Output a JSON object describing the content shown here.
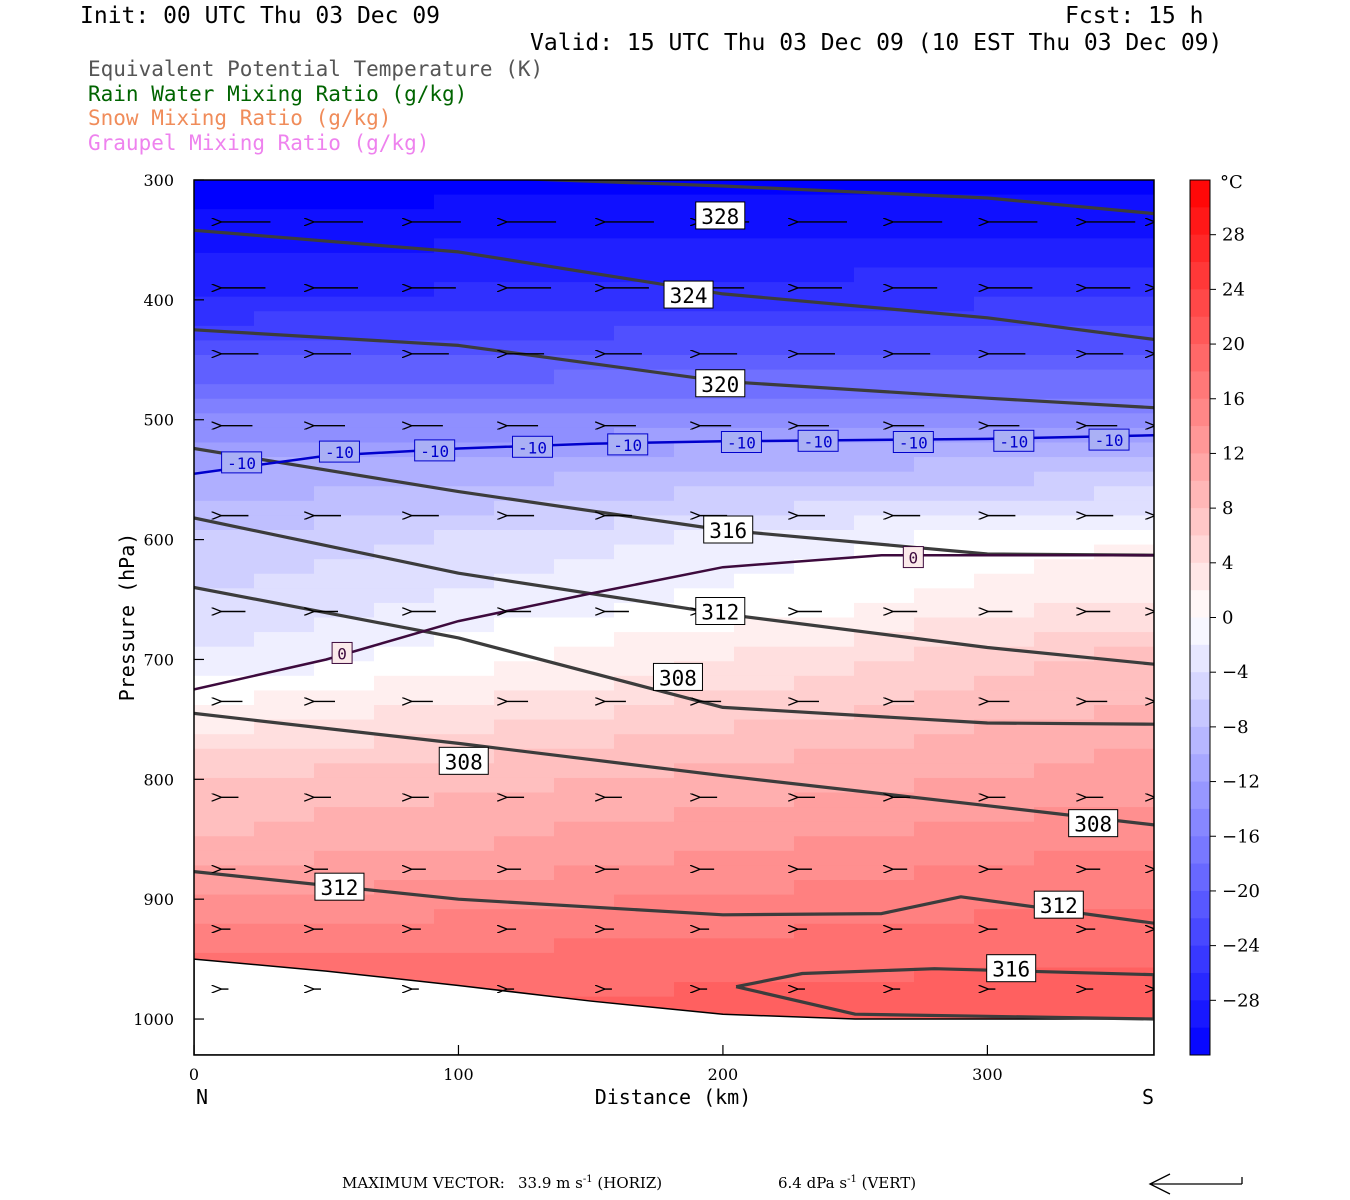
{
  "header": {
    "init": "Init: 00 UTC Thu 03 Dec 09",
    "fcst": "Fcst:   15 h",
    "valid": "Valid: 15 UTC Thu 03 Dec 09 (10 EST Thu 03 Dec 09)"
  },
  "legend": [
    {
      "label": "Equivalent Potential Temperature (K)",
      "color": "#555555"
    },
    {
      "label": "Rain Water Mixing Ratio (g/kg)",
      "color": "#006400"
    },
    {
      "label": "Snow Mixing Ratio (g/kg)",
      "color": "#f08c5a"
    },
    {
      "label": "Graupel Mixing Ratio (g/kg)",
      "color": "#ee82ee"
    }
  ],
  "footer": {
    "max_vector_label": "MAXIMUM VECTOR:",
    "horiz": "33.9 m s",
    "horiz_exp": "-1",
    "horiz_tag": "(HORIZ)",
    "vert": "6.4 dPa s",
    "vert_exp": "-1",
    "vert_tag": "(VERT)"
  },
  "chart_data": {
    "type": "cross-section",
    "xlabel": "Distance (km)",
    "ylabel": "Pressure (hPa)",
    "xlim": [
      0,
      363
    ],
    "ylim": [
      1030,
      300
    ],
    "x_ticks": [
      0,
      100,
      200,
      300
    ],
    "y_ticks": [
      300,
      400,
      500,
      600,
      700,
      800,
      900,
      1000
    ],
    "x_end_labels": {
      "left": "N",
      "right": "S"
    },
    "colorbar": {
      "unit": "°C",
      "min": -32,
      "max": 32,
      "step": 2,
      "tick_labels": [
        28,
        24,
        20,
        16,
        12,
        8,
        4,
        0,
        -4,
        -8,
        -12,
        -16,
        -20,
        -24,
        -28
      ],
      "cold_color": "#0000ff",
      "warm_color": "#ff0000"
    },
    "temperature_field": {
      "profile_pressure": [
        300,
        400,
        500,
        525,
        600,
        650,
        700,
        750,
        800,
        850,
        900,
        950,
        1000
      ],
      "profile_temp_north": [
        -32,
        -27,
        -15,
        -12,
        -7,
        -5,
        -3,
        2,
        7,
        9,
        13,
        17,
        19
      ],
      "profile_temp_south": [
        -32,
        -25,
        -15,
        -10,
        1,
        3,
        8,
        10,
        12,
        15,
        17,
        19,
        21
      ]
    },
    "surface": [
      [
        0,
        950
      ],
      [
        50,
        960
      ],
      [
        100,
        972
      ],
      [
        150,
        985
      ],
      [
        200,
        996
      ],
      [
        250,
        1000
      ],
      [
        300,
        1000
      ],
      [
        363,
        1000
      ]
    ],
    "theta_e_contours": [
      {
        "label": "328",
        "points": [
          [
            0,
            298
          ],
          [
            100,
            297
          ],
          [
            200,
            305
          ],
          [
            300,
            315
          ],
          [
            363,
            328
          ]
        ],
        "label_at": [
          199,
          330
        ]
      },
      {
        "label": "324",
        "points": [
          [
            0,
            342
          ],
          [
            100,
            360
          ],
          [
            200,
            395
          ],
          [
            300,
            415
          ],
          [
            363,
            433
          ]
        ],
        "label_at": [
          187,
          396
        ]
      },
      {
        "label": "320",
        "points": [
          [
            0,
            425
          ],
          [
            100,
            438
          ],
          [
            200,
            468
          ],
          [
            300,
            482
          ],
          [
            363,
            490
          ]
        ],
        "label_at": [
          199,
          470
        ]
      },
      {
        "label": "316",
        "points": [
          [
            0,
            524
          ],
          [
            100,
            560
          ],
          [
            200,
            592
          ],
          [
            300,
            612
          ],
          [
            363,
            613
          ]
        ],
        "label_at": [
          202,
          592
        ]
      },
      {
        "label": "312",
        "points": [
          [
            0,
            582
          ],
          [
            100,
            628
          ],
          [
            200,
            662
          ],
          [
            300,
            690
          ],
          [
            363,
            704
          ]
        ],
        "label_at": [
          199,
          660
        ]
      },
      {
        "label": "308",
        "points": [
          [
            0,
            640
          ],
          [
            100,
            682
          ],
          [
            200,
            740
          ],
          [
            300,
            753
          ],
          [
            363,
            754
          ]
        ],
        "label_at": [
          183,
          715
        ]
      },
      {
        "label": "308",
        "points": [
          [
            0,
            745
          ],
          [
            100,
            770
          ],
          [
            200,
            797
          ],
          [
            300,
            822
          ],
          [
            363,
            838
          ]
        ],
        "label_at": [
          102,
          785
        ]
      },
      {
        "label": "308",
        "points": [
          [
            340,
            838
          ]
        ],
        "label_at": [
          340,
          837
        ]
      },
      {
        "label": "312",
        "points": [
          [
            0,
            877
          ],
          [
            100,
            900
          ],
          [
            200,
            913
          ],
          [
            260,
            912
          ],
          [
            290,
            898
          ],
          [
            363,
            920
          ]
        ],
        "label_at": [
          55,
          890
        ]
      },
      {
        "label": "312",
        "points": [
          [
            327,
            905
          ]
        ],
        "label_at": [
          327,
          905
        ]
      },
      {
        "label": "316",
        "points": [
          [
            205,
            973
          ],
          [
            230,
            962
          ],
          [
            280,
            958
          ],
          [
            363,
            963
          ],
          [
            363,
            1000
          ],
          [
            250,
            996
          ],
          [
            205,
            973
          ]
        ],
        "label_at": [
          309,
          958
        ]
      }
    ],
    "temperature_contours": [
      {
        "value": -10,
        "label": "-10",
        "points": [
          [
            0,
            545
          ],
          [
            50,
            530
          ],
          [
            100,
            524
          ],
          [
            150,
            520
          ],
          [
            200,
            518
          ],
          [
            300,
            516
          ],
          [
            363,
            513
          ]
        ],
        "labels_at": [
          [
            18,
            536
          ],
          [
            55,
            527
          ],
          [
            91,
            526
          ],
          [
            128,
            523
          ],
          [
            164,
            521
          ],
          [
            207,
            519
          ],
          [
            236,
            518
          ],
          [
            272,
            519
          ],
          [
            310,
            518
          ],
          [
            346,
            517
          ]
        ]
      },
      {
        "value": 0,
        "label": "0",
        "points": [
          [
            0,
            725
          ],
          [
            50,
            700
          ],
          [
            100,
            668
          ],
          [
            150,
            645
          ],
          [
            200,
            623
          ],
          [
            260,
            613
          ],
          [
            363,
            613
          ]
        ],
        "labels_at": [
          [
            56,
            695
          ],
          [
            272,
            615
          ]
        ]
      }
    ],
    "wind_vectors": {
      "x_positions": [
        10,
        45,
        82,
        118,
        155,
        191,
        228,
        264,
        300,
        337,
        363
      ],
      "rows": [
        {
          "p": 335,
          "len": 50
        },
        {
          "p": 390,
          "len": 45
        },
        {
          "p": 445,
          "len": 38
        },
        {
          "p": 505,
          "len": 32
        },
        {
          "p": 580,
          "len": 28
        },
        {
          "p": 660,
          "len": 25
        },
        {
          "p": 735,
          "len": 22
        },
        {
          "p": 815,
          "len": 18
        },
        {
          "p": 875,
          "len": 15
        },
        {
          "p": 925,
          "len": 10
        },
        {
          "p": 975,
          "len": 8
        }
      ]
    }
  }
}
